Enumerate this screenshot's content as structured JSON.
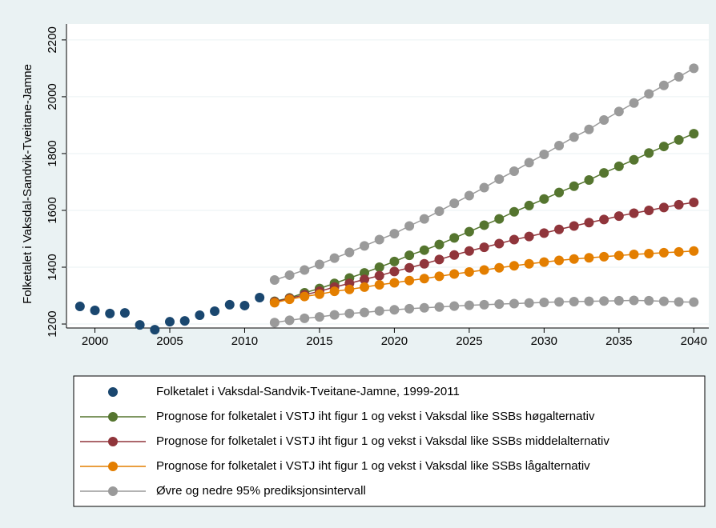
{
  "chart_data": {
    "type": "line",
    "y_label": "Folketalet i Vaksdal-Sandvik-Tveitane-Jamne",
    "xlim": [
      1998.1,
      2041
    ],
    "xticks": [
      2000,
      2005,
      2010,
      2015,
      2020,
      2025,
      2030,
      2035,
      2040
    ],
    "ylim": [
      1186,
      2256
    ],
    "yticks": [
      1200,
      1400,
      1600,
      1800,
      2000,
      2200
    ],
    "grid": true,
    "series": [
      {
        "name": "Folketalet i Vaksdal-Sandvik-Tveitane-Jamne, 1999-2011",
        "color": "#1a476f",
        "line": false,
        "x": [
          1999,
          2000,
          2001,
          2002,
          2003,
          2004,
          2005,
          2006,
          2007,
          2008,
          2009,
          2010,
          2011
        ],
        "values": [
          1262,
          1248,
          1237,
          1239,
          1197,
          1180,
          1208,
          1211,
          1231,
          1245,
          1268,
          1265,
          1293
        ]
      },
      {
        "name": "Prognose for folketalet i VSTJ iht figur 1 og vekst i Vaksdal like SSBs høgalternativ",
        "color": "#55752f",
        "line": true,
        "x": [
          2012,
          2013,
          2014,
          2015,
          2016,
          2017,
          2018,
          2019,
          2020,
          2021,
          2022,
          2023,
          2024,
          2025,
          2026,
          2027,
          2028,
          2029,
          2030,
          2031,
          2032,
          2033,
          2034,
          2035,
          2036,
          2037,
          2038,
          2039,
          2040
        ],
        "values": [
          1280,
          1292,
          1310,
          1325,
          1343,
          1362,
          1380,
          1400,
          1420,
          1442,
          1460,
          1480,
          1503,
          1525,
          1548,
          1570,
          1595,
          1617,
          1640,
          1663,
          1685,
          1707,
          1732,
          1755,
          1778,
          1802,
          1825,
          1848,
          1870
        ]
      },
      {
        "name": "Prognose for folketalet i VSTJ iht figur 1 og vekst i Vaksdal like SSBs middelalternativ",
        "color": "#90353b",
        "line": true,
        "x": [
          2012,
          2013,
          2014,
          2015,
          2016,
          2017,
          2018,
          2019,
          2020,
          2021,
          2022,
          2023,
          2024,
          2025,
          2026,
          2027,
          2028,
          2029,
          2030,
          2031,
          2032,
          2033,
          2034,
          2035,
          2036,
          2037,
          2038,
          2039,
          2040
        ],
        "values": [
          1278,
          1290,
          1303,
          1315,
          1330,
          1343,
          1357,
          1370,
          1385,
          1398,
          1412,
          1427,
          1443,
          1457,
          1470,
          1483,
          1497,
          1508,
          1520,
          1533,
          1545,
          1557,
          1568,
          1580,
          1590,
          1600,
          1610,
          1620,
          1628
        ]
      },
      {
        "name": "Prognose for folketalet i VSTJ iht figur 1 og vekst i Vaksdal like SSBs lågalternativ",
        "color": "#e37e00",
        "line": true,
        "x": [
          2012,
          2013,
          2014,
          2015,
          2016,
          2017,
          2018,
          2019,
          2020,
          2021,
          2022,
          2023,
          2024,
          2025,
          2026,
          2027,
          2028,
          2029,
          2030,
          2031,
          2032,
          2033,
          2034,
          2035,
          2036,
          2037,
          2038,
          2039,
          2040
        ],
        "values": [
          1275,
          1287,
          1297,
          1305,
          1315,
          1322,
          1330,
          1338,
          1345,
          1353,
          1360,
          1368,
          1376,
          1383,
          1390,
          1398,
          1405,
          1412,
          1418,
          1424,
          1429,
          1433,
          1437,
          1441,
          1445,
          1448,
          1451,
          1454,
          1457
        ]
      },
      {
        "name": "Øvre og nedre 95% prediksjonsintervall",
        "color": "#9a9a9a",
        "line": true,
        "x": [
          2012,
          2013,
          2014,
          2015,
          2016,
          2017,
          2018,
          2019,
          2020,
          2021,
          2022,
          2023,
          2024,
          2025,
          2026,
          2027,
          2028,
          2029,
          2030,
          2031,
          2032,
          2033,
          2034,
          2035,
          2036,
          2037,
          2038,
          2039,
          2040
        ],
        "values": [
          1355,
          1372,
          1390,
          1410,
          1432,
          1452,
          1475,
          1497,
          1518,
          1545,
          1570,
          1597,
          1625,
          1652,
          1680,
          1710,
          1738,
          1768,
          1797,
          1828,
          1858,
          1885,
          1918,
          1948,
          1978,
          2010,
          2040,
          2070,
          2100
        ],
        "lower": [
          1205,
          1213,
          1220,
          1225,
          1232,
          1237,
          1241,
          1246,
          1250,
          1254,
          1257,
          1260,
          1263,
          1266,
          1268,
          1270,
          1272,
          1274,
          1276,
          1278,
          1279,
          1280,
          1281,
          1282,
          1283,
          1282,
          1280,
          1278,
          1277
        ]
      }
    ]
  }
}
